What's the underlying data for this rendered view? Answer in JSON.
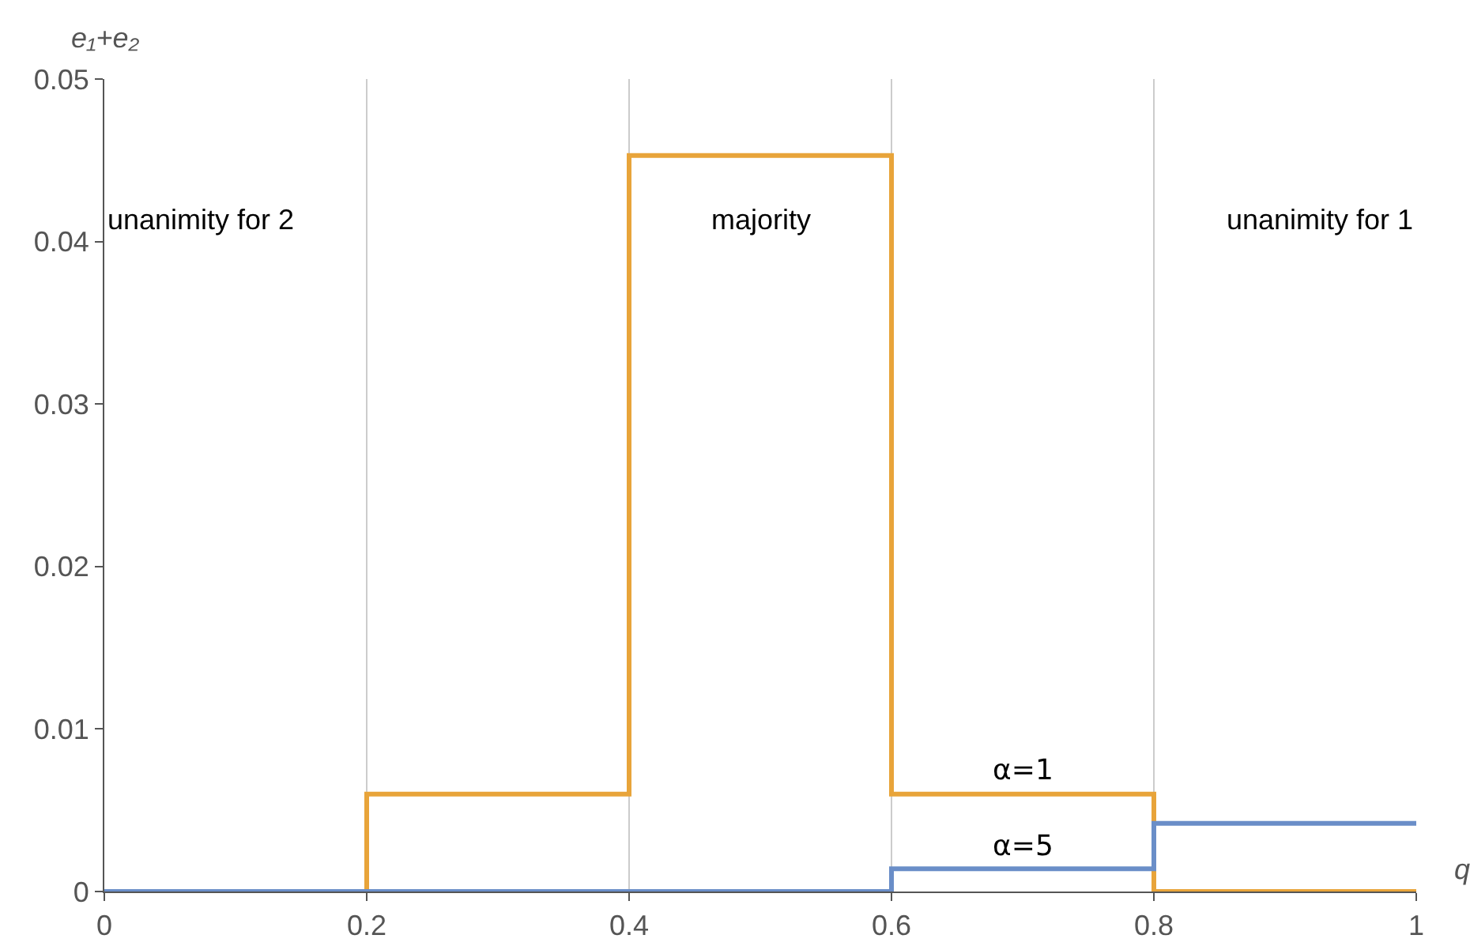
{
  "chart_data": {
    "type": "step",
    "xlabel": "q",
    "ylabel": "e₁+e₂",
    "x": [
      0,
      0.2,
      0.4,
      0.6,
      0.8,
      1
    ],
    "series": [
      {
        "name": "α=1",
        "color": "#e8a43a",
        "values": [
          0,
          0.006,
          0.0453,
          0.006,
          0,
          0
        ]
      },
      {
        "name": "α=5",
        "color": "#6a8ec8",
        "values": [
          0,
          0,
          0,
          0.0014,
          0.0042,
          0.0042
        ]
      }
    ],
    "xlim": [
      0,
      1
    ],
    "xticks": [
      0,
      0.2,
      0.4,
      0.6,
      0.8,
      1
    ],
    "ylim": [
      0,
      0.05
    ],
    "yticks": [
      0,
      0.01,
      0.02,
      0.03,
      0.04,
      0.05
    ],
    "grid": "x",
    "legend": false,
    "marker": "none",
    "line_style": "solid",
    "annotations": [
      "unanimity for 2",
      "majority",
      "unanimity for 1"
    ]
  }
}
